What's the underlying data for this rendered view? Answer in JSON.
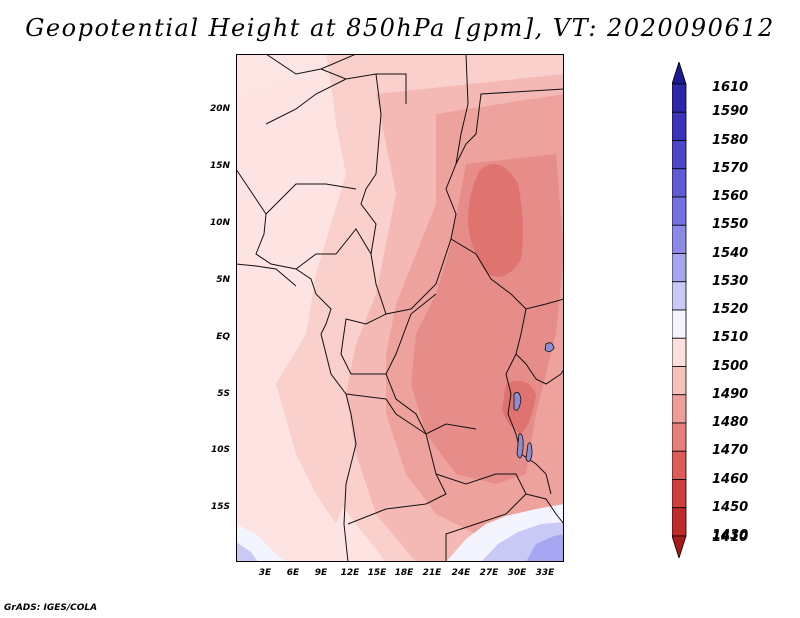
{
  "title": "Geopotential Height at 850hPa [gpm], VT: 2020090612",
  "credit": "GrADS: IGES/COLA",
  "map": {
    "lat_labels": [
      "20N",
      "15N",
      "10N",
      "5N",
      "EQ",
      "5S",
      "10S",
      "15S"
    ],
    "lon_labels": [
      "3E",
      "6E",
      "9E",
      "12E",
      "15E",
      "18E",
      "21E",
      "24E",
      "27E",
      "30E",
      "33E"
    ]
  },
  "colorbar": {
    "levels": [
      "1610",
      "1590",
      "1580",
      "1570",
      "1560",
      "1550",
      "1540",
      "1530",
      "1520",
      "1510",
      "1500",
      "1490",
      "1480",
      "1470",
      "1460",
      "1450",
      "1430",
      "1410"
    ],
    "colors": [
      "#1f1a8f",
      "#2c27a8",
      "#3a35b8",
      "#4b47c8",
      "#5f5cd6",
      "#7471e0",
      "#8c8ae8",
      "#a6a5ef",
      "#c9c9f6",
      "#f4f4ff",
      "#fbe0de",
      "#f6c1bd",
      "#ee9e99",
      "#e57f7a",
      "#db5c58",
      "#cf3f3d",
      "#c02a2a",
      "#a51a1a"
    ]
  },
  "field_colors": {
    "c1520": "#c9c9f6",
    "c1510": "#f4f4ff",
    "c1500": "#fde4e2",
    "c1495": "#f9d0cc",
    "c1490": "#f4b9b4",
    "c1485": "#eea29d",
    "c1480": "#e68d89",
    "c1475": "#df7370",
    "lake": "#8f8fd0"
  }
}
